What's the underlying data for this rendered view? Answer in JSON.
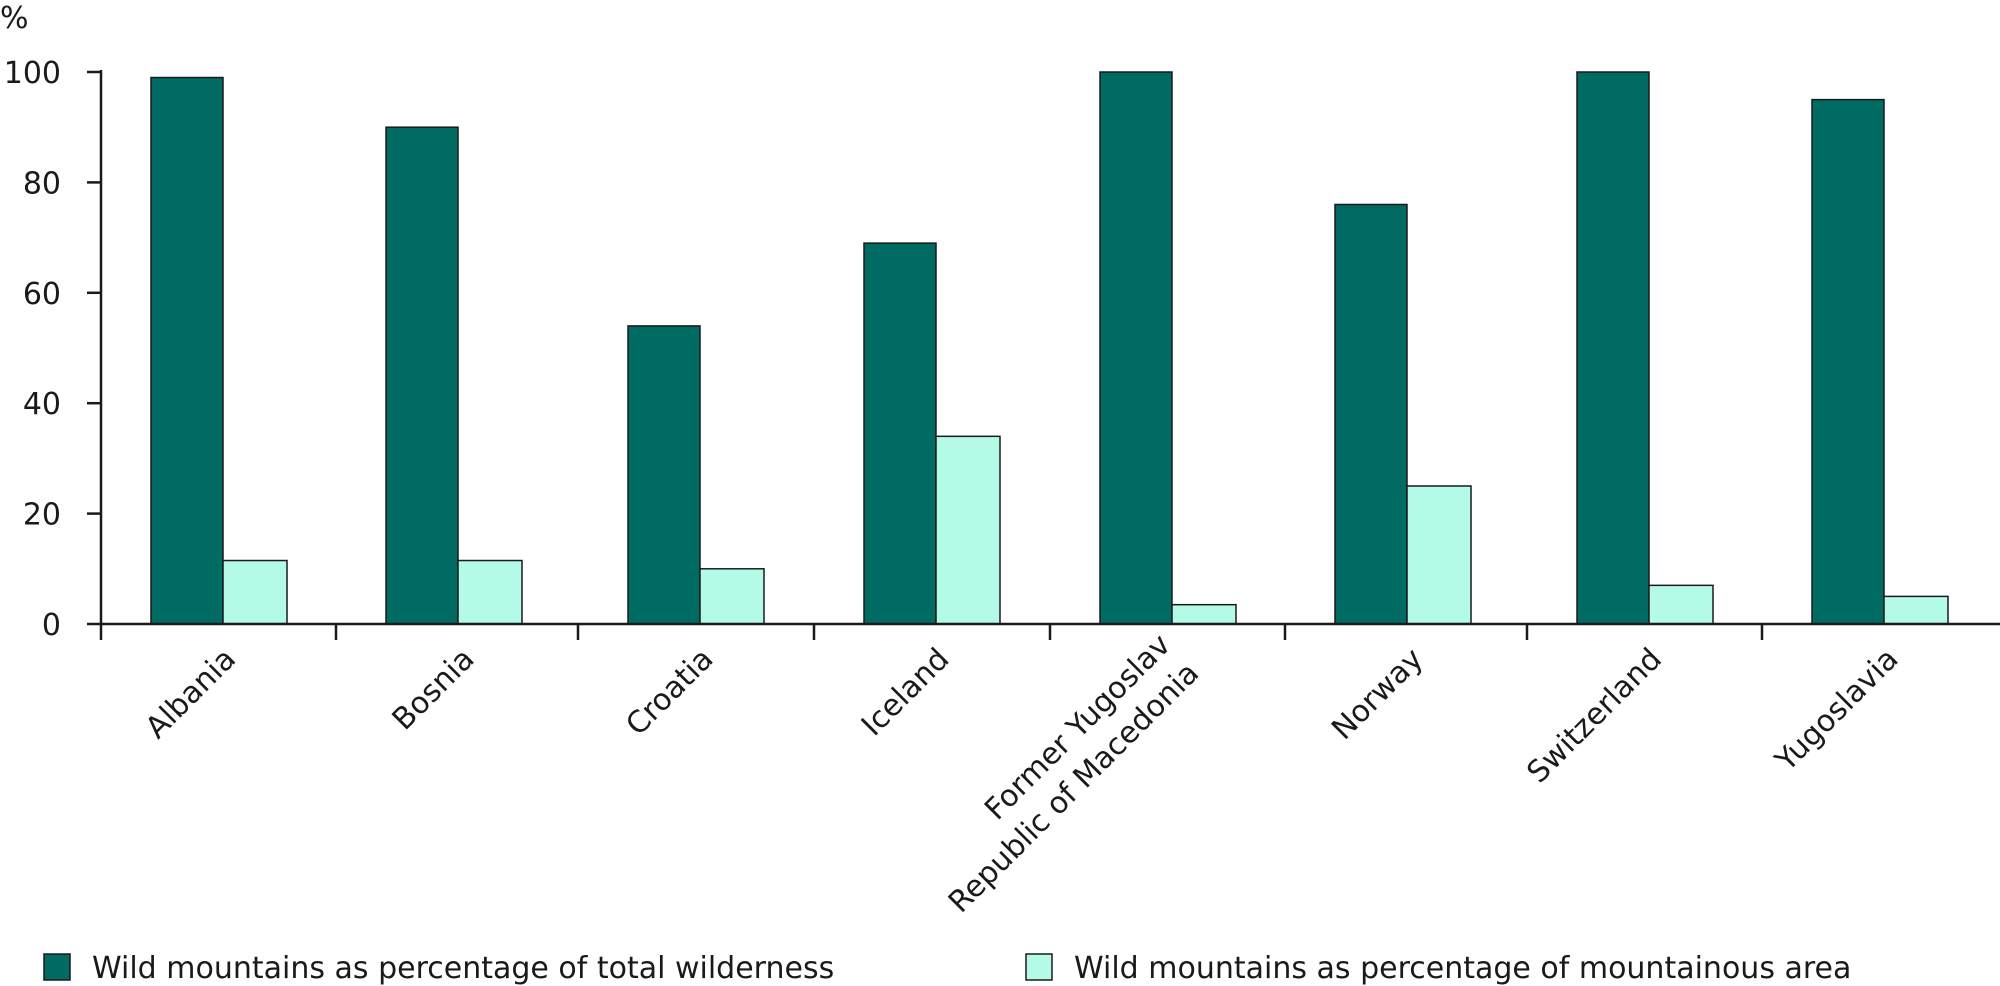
{
  "chart_data": {
    "type": "bar",
    "title": "",
    "ylabel": "%",
    "xlabel": "",
    "ylim": [
      0,
      100
    ],
    "yticks": [
      0,
      20,
      40,
      60,
      80,
      100
    ],
    "grid": false,
    "legend_position": "bottom",
    "categories": [
      [
        "Albania"
      ],
      [
        "Bosnia"
      ],
      [
        "Croatia"
      ],
      [
        "Iceland"
      ],
      [
        "Former Yugoslav",
        "Republic of Macedonia"
      ],
      [
        "Norway"
      ],
      [
        "Switzerland"
      ],
      [
        "Yugoslavia"
      ]
    ],
    "series": [
      {
        "name": "Wild mountains as percentage of total wilderness",
        "color": "#006b62",
        "values": [
          99,
          90,
          54,
          69,
          100,
          76,
          100,
          95
        ]
      },
      {
        "name": "Wild mountains as percentage of mountainous area",
        "color": "#b3fbe7",
        "values": [
          11.5,
          11.5,
          10,
          34,
          3.5,
          25,
          7,
          5
        ]
      }
    ]
  }
}
